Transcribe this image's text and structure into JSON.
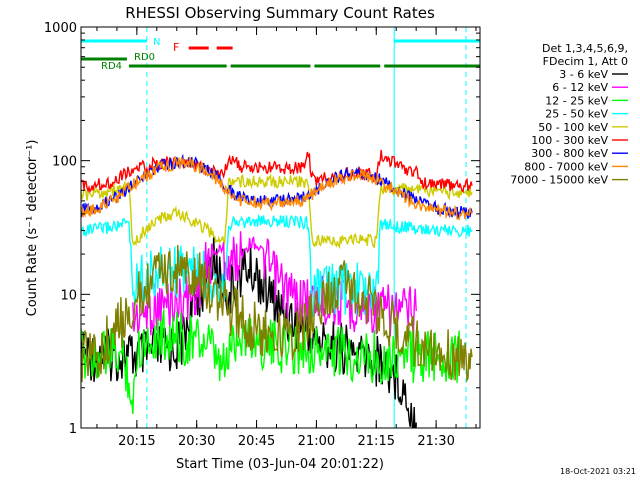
{
  "chart_data": {
    "type": "line",
    "title": "RHESSI Observing Summary Count Rates",
    "xlabel": "Start Time (03-Jun-04 20:01:22)",
    "ylabel": "Count Rate (s⁻¹ detector⁻¹)",
    "yscale": "log",
    "ylim": [
      1,
      1000
    ],
    "xlim": [
      0,
      100
    ],
    "x_unit": "minutes after 20:01:22",
    "x_ticks": [
      {
        "v": 14,
        "label": "20:15"
      },
      {
        "v": 29,
        "label": "20:30"
      },
      {
        "v": 44,
        "label": "20:45"
      },
      {
        "v": 59,
        "label": "21:00"
      },
      {
        "v": 74,
        "label": "21:15"
      },
      {
        "v": 89,
        "label": "21:30"
      }
    ],
    "y_ticks": [
      {
        "v": 1,
        "label": "1"
      },
      {
        "v": 10,
        "label": "10"
      },
      {
        "v": 100,
        "label": "100"
      },
      {
        "v": 1000,
        "label": "1000"
      }
    ],
    "legend": {
      "position": "right",
      "header": [
        "Det 1,3,4,5,6,9,",
        "FDecim 1, Att 0"
      ]
    },
    "annotations": {
      "night_label": "N",
      "flare_label": "F",
      "rd0_label": "RD0",
      "rd4_label": "RD4",
      "timestamp": "18-Oct-2021 03:21"
    },
    "markers": {
      "solid_cyan_x": [
        0,
        78.5
      ],
      "dashed_cyan_x": [
        16.5,
        96.5
      ],
      "night_intervals": [
        [
          0,
          16.5
        ],
        [
          78.5,
          100
        ]
      ],
      "flare_intervals": [
        [
          27,
          32
        ],
        [
          34,
          38
        ]
      ],
      "rd0_intervals": [
        [
          0,
          11.5
        ]
      ],
      "rd4_intervals": [
        [
          12,
          36.5
        ],
        [
          37.5,
          57.5
        ],
        [
          58.5,
          75
        ],
        [
          76,
          100
        ]
      ]
    },
    "series": [
      {
        "name": "3 - 6 keV",
        "color": "#000000",
        "x": [
          0,
          5,
          10,
          13,
          16,
          20,
          23,
          25,
          27,
          29,
          31,
          33,
          35,
          37,
          39,
          41,
          43,
          45,
          47,
          50,
          53,
          56,
          59,
          62,
          65,
          68,
          71,
          74,
          76,
          78,
          80,
          82,
          84
        ],
        "y": [
          3.5,
          3.5,
          3.5,
          3.4,
          3.5,
          3.8,
          4.0,
          4.2,
          6.5,
          10,
          12,
          18,
          14,
          10,
          12,
          16,
          15,
          13,
          10,
          7.5,
          6.5,
          5.5,
          4.5,
          4.2,
          4.0,
          3.6,
          3.4,
          3.2,
          3.0,
          2.6,
          2.3,
          1.6,
          1.1
        ]
      },
      {
        "name": "6 - 12 keV",
        "color": "#ff00ff",
        "x": [
          13,
          16,
          19,
          22,
          25,
          27,
          29,
          31,
          33,
          35,
          37,
          39,
          41,
          43,
          45,
          47,
          50,
          53,
          56,
          59,
          62,
          65,
          68,
          71,
          74,
          77,
          80,
          84
        ],
        "y": [
          6.5,
          7.5,
          8.0,
          8.5,
          9.0,
          9.5,
          11,
          15,
          20,
          22,
          17,
          18,
          22,
          25,
          22,
          16,
          12,
          9.5,
          9.0,
          9.0,
          8.8,
          8.5,
          8.2,
          8.0,
          7.8,
          7.5,
          7.5,
          7.5
        ]
      },
      {
        "name": "12 - 25 keV",
        "color": "#00ff00",
        "x": [
          0,
          5,
          10,
          12,
          13,
          14,
          15,
          16,
          18,
          20,
          22,
          24,
          26,
          28,
          30,
          32,
          34,
          36,
          38,
          40,
          43,
          46,
          50,
          55,
          60,
          65,
          70,
          75,
          80,
          85,
          90,
          95
        ],
        "y": [
          3.5,
          3.6,
          3.5,
          2.5,
          1.2,
          4.0,
          4.2,
          4.5,
          4.8,
          5.0,
          5.0,
          4.8,
          4.6,
          4.5,
          4.4,
          4.2,
          3.0,
          2.8,
          4.5,
          5.0,
          4.8,
          4.2,
          4.0,
          4.0,
          3.8,
          3.6,
          3.5,
          3.4,
          3.5,
          3.4,
          3.4,
          3.4
        ]
      },
      {
        "name": "25 - 50 keV",
        "color": "#00ffff",
        "x": [
          0,
          5,
          10,
          12,
          13,
          15,
          18,
          21,
          24,
          27,
          30,
          33,
          36,
          37,
          40,
          45,
          50,
          55,
          57,
          58,
          60,
          65,
          70,
          74,
          75,
          76,
          80,
          85,
          90,
          95,
          98
        ],
        "y": [
          30,
          31,
          33,
          34,
          11,
          13,
          14,
          15,
          15,
          15,
          14,
          13,
          12,
          34,
          35,
          35,
          35,
          35,
          34,
          10,
          11,
          11,
          11,
          10,
          32,
          34,
          32,
          31,
          30,
          30,
          30
        ]
      },
      {
        "name": "50 - 100 keV",
        "color": "#cccc00",
        "x": [
          0,
          5,
          10,
          12,
          13,
          15,
          18,
          21,
          24,
          27,
          30,
          33,
          36,
          37,
          40,
          45,
          50,
          55,
          57,
          58,
          60,
          65,
          70,
          74,
          75,
          76,
          80,
          85,
          90,
          95,
          98
        ],
        "y": [
          55,
          58,
          62,
          65,
          22,
          28,
          34,
          38,
          40,
          37,
          33,
          28,
          24,
          70,
          70,
          70,
          70,
          70,
          68,
          25,
          25,
          25,
          26,
          25,
          60,
          62,
          62,
          60,
          58,
          58,
          58
        ]
      },
      {
        "name": "100 - 300 keV",
        "color": "#ff0000",
        "x": [
          0,
          4,
          8,
          11,
          13,
          16,
          19,
          22,
          25,
          28,
          31,
          34,
          36,
          37,
          40,
          45,
          50,
          54,
          56,
          57,
          58,
          59,
          60,
          65,
          70,
          74,
          75,
          76,
          80,
          84,
          85,
          90,
          95,
          98
        ],
        "y": [
          65,
          66,
          70,
          80,
          85,
          90,
          95,
          98,
          97,
          93,
          87,
          80,
          78,
          110,
          90,
          88,
          88,
          89,
          92,
          110,
          75,
          72,
          74,
          78,
          80,
          77,
          110,
          110,
          88,
          82,
          68,
          66,
          65,
          65
        ]
      },
      {
        "name": "300 - 800 keV",
        "color": "#0000ff",
        "x": [
          0,
          4,
          8,
          11,
          13,
          16,
          19,
          22,
          25,
          28,
          31,
          34,
          37,
          40,
          45,
          50,
          55,
          58,
          62,
          66,
          70,
          74,
          76,
          80,
          84,
          88,
          92,
          96,
          98
        ],
        "y": [
          42,
          45,
          52,
          60,
          68,
          78,
          88,
          95,
          98,
          96,
          88,
          75,
          60,
          53,
          50,
          50,
          52,
          58,
          70,
          78,
          80,
          74,
          70,
          58,
          50,
          45,
          42,
          41,
          41
        ]
      },
      {
        "name": "800 - 7000 keV",
        "color": "#ff8800",
        "x": [
          0,
          4,
          8,
          11,
          13,
          16,
          19,
          22,
          25,
          28,
          31,
          34,
          37,
          40,
          45,
          50,
          55,
          58,
          62,
          66,
          70,
          74,
          76,
          80,
          84,
          88,
          92,
          96,
          98
        ],
        "y": [
          41,
          44,
          50,
          58,
          66,
          76,
          86,
          93,
          96,
          94,
          86,
          73,
          58,
          51,
          48,
          48,
          50,
          56,
          68,
          76,
          78,
          72,
          68,
          56,
          48,
          44,
          41,
          40,
          40
        ]
      },
      {
        "name": "7000 - 15000 keV",
        "color": "#808000",
        "x": [
          0,
          3,
          6,
          9,
          12,
          15,
          18,
          21,
          24,
          27,
          30,
          33,
          36,
          39,
          42,
          45,
          48,
          51,
          54,
          57,
          60,
          63,
          66,
          69,
          72,
          75,
          78,
          81,
          84,
          87,
          90,
          93,
          96,
          98
        ],
        "y": [
          3.4,
          3.5,
          4.2,
          5.5,
          7.5,
          10,
          12.5,
          14.5,
          15.5,
          15,
          13,
          10.5,
          8.5,
          7,
          6,
          5.2,
          4.8,
          4.8,
          5.2,
          6.5,
          8.5,
          10.5,
          11.5,
          11,
          9.5,
          7.5,
          6,
          4.8,
          4.2,
          3.8,
          3.6,
          3.5,
          3.4,
          3.4
        ]
      }
    ]
  }
}
